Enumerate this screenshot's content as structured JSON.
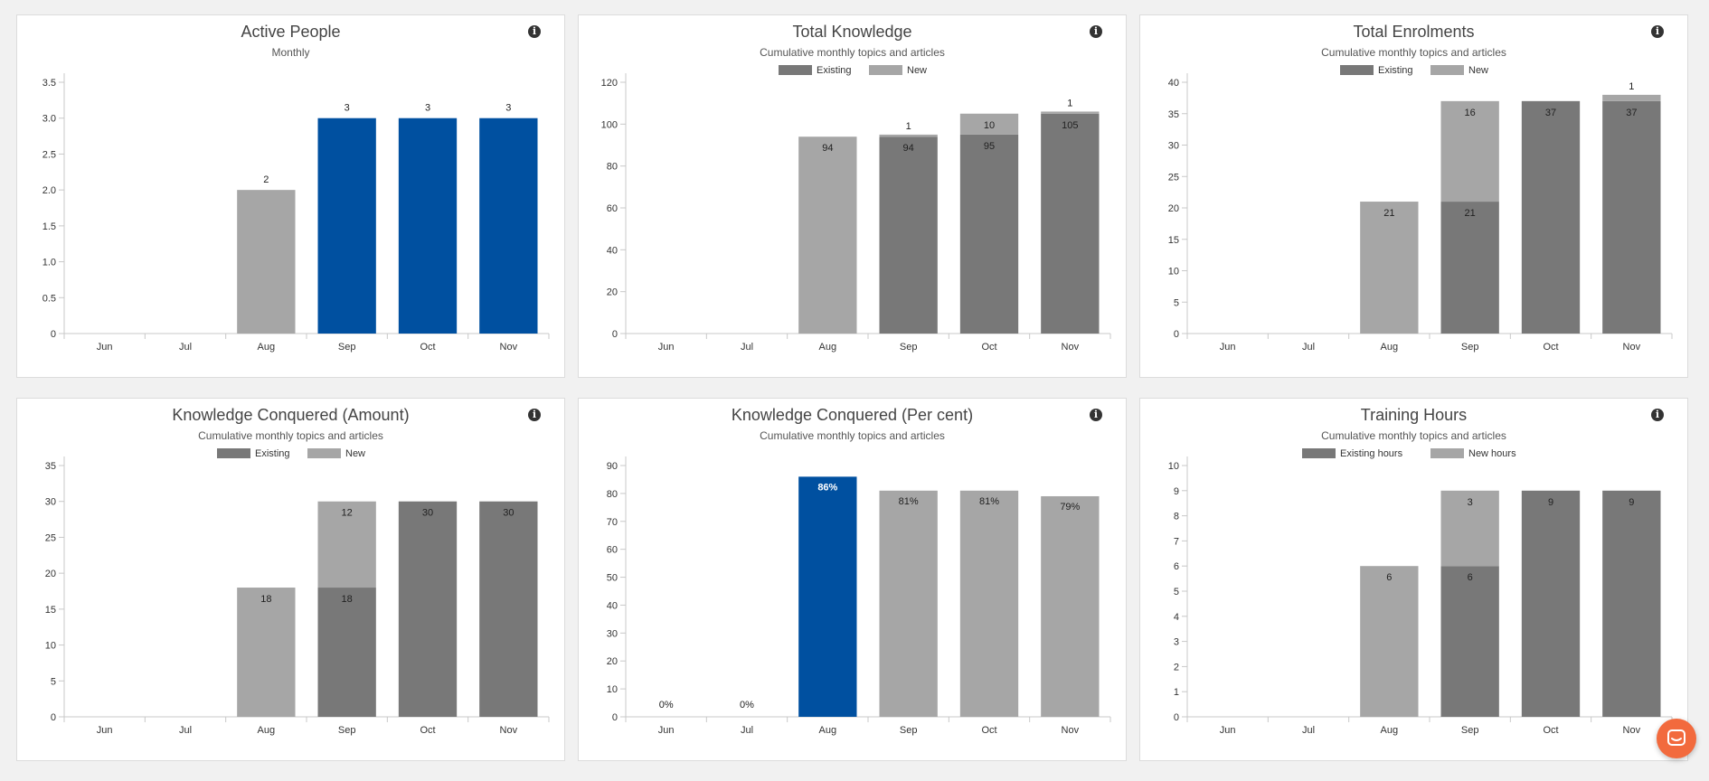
{
  "colors": {
    "existing": "#787878",
    "new": "#a6a6a6",
    "highlight": "#0050a0",
    "axis": "#c8c8c8",
    "text": "#333333"
  },
  "panels": [
    {
      "title": "Active People",
      "subtitle": "Monthly",
      "legend": []
    },
    {
      "title": "Total Knowledge",
      "subtitle": "Cumulative monthly topics and articles",
      "legend": [
        "Existing",
        "New"
      ]
    },
    {
      "title": "Total Enrolments",
      "subtitle": "Cumulative monthly topics and articles",
      "legend": [
        "Existing",
        "New"
      ]
    },
    {
      "title": "Knowledge Conquered (Amount)",
      "subtitle": "Cumulative monthly topics and articles",
      "legend": [
        "Existing",
        "New"
      ]
    },
    {
      "title": "Knowledge Conquered (Per cent)",
      "subtitle": "Cumulative monthly topics and articles",
      "legend": []
    },
    {
      "title": "Training Hours",
      "subtitle": "Cumulative monthly topics and articles",
      "legend": [
        "Existing hours",
        "New hours"
      ]
    }
  ],
  "chart_data": [
    {
      "type": "bar",
      "title": "Active People",
      "subtitle": "Monthly",
      "categories": [
        "Jun",
        "Jul",
        "Aug",
        "Sep",
        "Oct",
        "Nov"
      ],
      "ylim": [
        0,
        3.5
      ],
      "yticks": [
        "0",
        "0.5",
        "1.0",
        "1.5",
        "2.0",
        "2.5",
        "3.0",
        "3.5"
      ],
      "values": [
        null,
        null,
        2,
        3,
        3,
        3
      ],
      "bar_colors": [
        "new",
        "new",
        "new",
        "highlight",
        "highlight",
        "highlight"
      ]
    },
    {
      "type": "bar",
      "stacked": true,
      "title": "Total Knowledge",
      "subtitle": "Cumulative monthly topics and articles",
      "categories": [
        "Jun",
        "Jul",
        "Aug",
        "Sep",
        "Oct",
        "Nov"
      ],
      "ylim": [
        0,
        120
      ],
      "yticks": [
        "0",
        "20",
        "40",
        "60",
        "80",
        "100",
        "120"
      ],
      "series": [
        {
          "name": "Existing",
          "values": [
            null,
            null,
            null,
            94,
            95,
            105
          ]
        },
        {
          "name": "New",
          "values": [
            null,
            null,
            94,
            1,
            10,
            1
          ]
        }
      ]
    },
    {
      "type": "bar",
      "stacked": true,
      "title": "Total Enrolments",
      "subtitle": "Cumulative monthly topics and articles",
      "categories": [
        "Jun",
        "Jul",
        "Aug",
        "Sep",
        "Oct",
        "Nov"
      ],
      "ylim": [
        0,
        40
      ],
      "yticks": [
        "0",
        "5",
        "10",
        "15",
        "20",
        "25",
        "30",
        "35",
        "40"
      ],
      "series": [
        {
          "name": "Existing",
          "values": [
            null,
            null,
            null,
            21,
            37,
            37
          ]
        },
        {
          "name": "New",
          "values": [
            null,
            null,
            21,
            16,
            null,
            1
          ]
        }
      ]
    },
    {
      "type": "bar",
      "stacked": true,
      "title": "Knowledge Conquered (Amount)",
      "subtitle": "Cumulative monthly topics and articles",
      "categories": [
        "Jun",
        "Jul",
        "Aug",
        "Sep",
        "Oct",
        "Nov"
      ],
      "ylim": [
        0,
        35
      ],
      "yticks": [
        "0",
        "5",
        "10",
        "15",
        "20",
        "25",
        "30",
        "35"
      ],
      "series": [
        {
          "name": "Existing",
          "values": [
            null,
            null,
            null,
            18,
            30,
            30
          ]
        },
        {
          "name": "New",
          "values": [
            null,
            null,
            18,
            12,
            null,
            null
          ]
        }
      ]
    },
    {
      "type": "bar",
      "title": "Knowledge Conquered (Per cent)",
      "subtitle": "Cumulative monthly topics and articles",
      "categories": [
        "Jun",
        "Jul",
        "Aug",
        "Sep",
        "Oct",
        "Nov"
      ],
      "ylim": [
        0,
        90
      ],
      "yticks": [
        "0",
        "10",
        "20",
        "30",
        "40",
        "50",
        "60",
        "70",
        "80",
        "90"
      ],
      "values": [
        0,
        0,
        86,
        81,
        81,
        79
      ],
      "labels": [
        "0%",
        "0%",
        "86%",
        "81%",
        "81%",
        "79%"
      ],
      "bar_colors": [
        "new",
        "new",
        "highlight",
        "new",
        "new",
        "new"
      ]
    },
    {
      "type": "bar",
      "stacked": true,
      "title": "Training Hours",
      "subtitle": "Cumulative monthly topics and articles",
      "categories": [
        "Jun",
        "Jul",
        "Aug",
        "Sep",
        "Oct",
        "Nov"
      ],
      "ylim": [
        0,
        10
      ],
      "yticks": [
        "0",
        "1",
        "2",
        "3",
        "4",
        "5",
        "6",
        "7",
        "8",
        "9",
        "10"
      ],
      "series": [
        {
          "name": "Existing hours",
          "values": [
            null,
            null,
            null,
            6,
            9,
            9
          ]
        },
        {
          "name": "New hours",
          "values": [
            null,
            null,
            6,
            3,
            null,
            null
          ]
        }
      ]
    }
  ]
}
